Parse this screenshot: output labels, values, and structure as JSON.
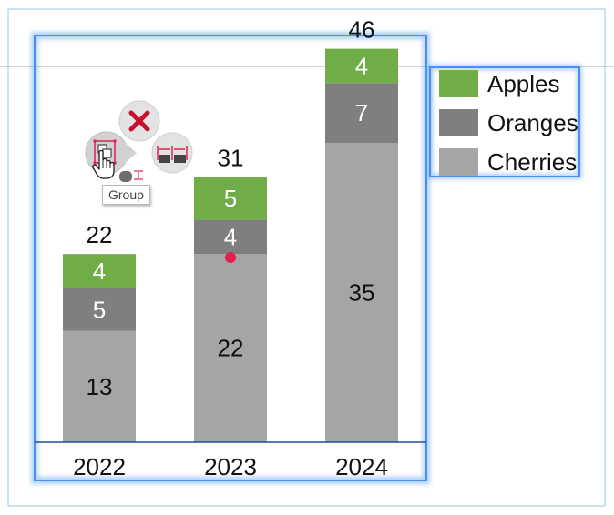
{
  "chart_data": {
    "type": "bar",
    "stacked": true,
    "categories": [
      "2022",
      "2023",
      "2024"
    ],
    "series": [
      {
        "name": "Cherries",
        "values": [
          13,
          22,
          35
        ],
        "color": "#a5a5a5"
      },
      {
        "name": "Oranges",
        "values": [
          5,
          4,
          7
        ],
        "color": "#7f7f7f"
      },
      {
        "name": "Apples",
        "values": [
          4,
          5,
          4
        ],
        "color": "#70ad47"
      }
    ],
    "totals": [
      22,
      31,
      46
    ],
    "ylim": [
      0,
      46
    ],
    "grid": false,
    "legend": "right",
    "title": "",
    "xlabel": "",
    "ylabel": ""
  },
  "toolbar": {
    "tooltip": "Group",
    "delete_icon": "close-icon",
    "group_icon": "group-icon",
    "distribute_icon": "distribute-horizontal-icon",
    "cursor_icon": "hand-pointer-icon"
  },
  "colors": {
    "selection": "#4a8ff0",
    "axis": "#1f4e9a",
    "handle": "#e02050",
    "delete": "#c8102e"
  }
}
